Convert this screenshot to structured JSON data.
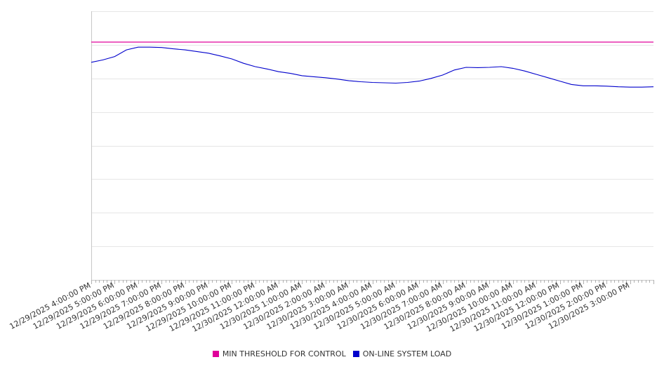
{
  "chart_data": {
    "type": "line",
    "title": "",
    "xlabel": "",
    "ylabel": "",
    "x_tick_labels": [
      "12/29/2025 4:00:00 PM",
      "12/29/2025 5:00:00 PM",
      "12/29/2025 6:00:00 PM",
      "12/29/2025 7:00:00 PM",
      "12/29/2025 8:00:00 PM",
      "12/29/2025 9:00:00 PM",
      "12/29/2025 10:00:00 PM",
      "12/29/2025 11:00:00 PM",
      "12/30/2025 12:00:00 AM",
      "12/30/2025 1:00:00 AM",
      "12/30/2025 2:00:00 AM",
      "12/30/2025 3:00:00 AM",
      "12/30/2025 4:00:00 AM",
      "12/30/2025 5:00:00 AM",
      "12/30/2025 6:00:00 AM",
      "12/30/2025 7:00:00 AM",
      "12/30/2025 8:00:00 AM",
      "12/30/2025 9:00:00 AM",
      "12/30/2025 10:00:00 AM",
      "12/30/2025 11:00:00 AM",
      "12/30/2025 12:00:00 PM",
      "12/30/2025 1:00:00 PM",
      "12/30/2025 2:00:00 PM",
      "12/30/2025 3:00:00 PM"
    ],
    "x_hours_span": 24,
    "ylim": [
      0,
      8
    ],
    "y_gridlines": [
      1,
      2,
      3,
      4,
      5,
      6,
      7,
      8
    ],
    "y_tick_labels_shown": false,
    "grid": true,
    "legend_position": "bottom",
    "series": [
      {
        "name": "MIN THRESHOLD FOR CONTROL",
        "color": "#e0009a",
        "x": [
          0,
          24
        ],
        "y": [
          7.08,
          7.08
        ]
      },
      {
        "name": "ON-LINE SYSTEM LOAD",
        "color": "#0000cc",
        "x": [
          0,
          0.5,
          1.0,
          1.5,
          2.0,
          2.5,
          3.0,
          3.5,
          4.0,
          4.5,
          5.0,
          5.5,
          6.0,
          6.5,
          7.0,
          7.5,
          8.0,
          8.5,
          9.0,
          9.5,
          10.0,
          10.5,
          11.0,
          11.5,
          12.0,
          12.5,
          13.0,
          13.5,
          14.0,
          14.5,
          15.0,
          15.5,
          16.0,
          16.5,
          17.0,
          17.5,
          18.0,
          18.5,
          19.0,
          19.5,
          20.0,
          20.5,
          21.0,
          21.5,
          22.0,
          22.5,
          23.0,
          23.5,
          24.0
        ],
        "y": [
          6.48,
          6.55,
          6.65,
          6.85,
          6.93,
          6.93,
          6.92,
          6.88,
          6.85,
          6.8,
          6.75,
          6.67,
          6.58,
          6.45,
          6.35,
          6.28,
          6.2,
          6.15,
          6.08,
          6.05,
          6.02,
          5.98,
          5.93,
          5.9,
          5.88,
          5.87,
          5.86,
          5.88,
          5.92,
          6.0,
          6.1,
          6.25,
          6.33,
          6.32,
          6.33,
          6.35,
          6.3,
          6.22,
          6.12,
          6.02,
          5.92,
          5.82,
          5.78,
          5.78,
          5.77,
          5.75,
          5.74,
          5.74,
          5.75
        ]
      }
    ]
  }
}
